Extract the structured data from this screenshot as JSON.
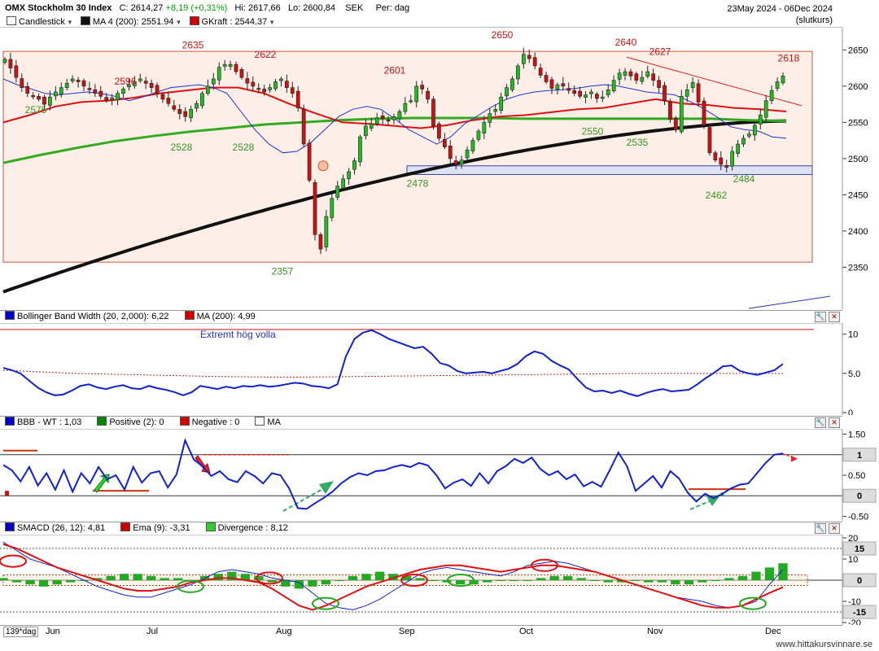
{
  "header": {
    "title": "OMX Stockholm 30 Index",
    "close": "C: 2614,27",
    "change": "+8,19 (+0,31%)",
    "high": "Hi: 2617,66",
    "low": "Lo: 2600,84",
    "currency": "SEK",
    "period": "Per: dag",
    "date_range": "23May 2024 - 06Dec 2024",
    "close_note": "(slutkurs)",
    "legend": [
      {
        "label": "Candlestick",
        "color": "#ffffff",
        "dropdown": true
      },
      {
        "label": "MA 4 (200): 2551.94",
        "color": "#000000",
        "dropdown": true
      },
      {
        "label": "GKraft : 2544.37",
        "color": "#d00000",
        "dropdown": true
      }
    ]
  },
  "panels": {
    "bbw": {
      "legend": [
        {
          "label": "Bollinger Band Width (20, 2,000): 6,22",
          "color": "#0000cc"
        },
        {
          "label": "MA (200): 4,99",
          "color": "#d00000"
        }
      ],
      "annotation": "Extremt hög volla"
    },
    "bbb": {
      "legend": [
        {
          "label": "BBB - WT : 1,03",
          "color": "#0000cc"
        },
        {
          "label": "Positive (2): 0",
          "color": "#008800"
        },
        {
          "label": "Negative : 0",
          "color": "#d00000"
        },
        {
          "label": "MA",
          "color": "#ffffff"
        }
      ],
      "tags": [
        "1",
        "0"
      ]
    },
    "smacd": {
      "legend": [
        {
          "label": "SMACD (26, 12): 4,81",
          "color": "#0000cc"
        },
        {
          "label": "Ema (9): -3,31",
          "color": "#d00000"
        },
        {
          "label": "Divergence : 8,12",
          "color": "#33cc33"
        }
      ],
      "tags": [
        "15",
        "0",
        "-15"
      ]
    }
  },
  "x_axis": {
    "period_label": "139*dag",
    "months": [
      "Jun",
      "Jul",
      "Aug",
      "Sep",
      "Oct",
      "Nov",
      "Dec"
    ]
  },
  "footer": "www.hittakursvinnare.se",
  "colors": {
    "up": "#22bb22",
    "down": "#cc1111",
    "ma200": "#111111",
    "ma_red": "#dd1111",
    "ma_green": "#33aa22",
    "bg_zone": "#fdeee8"
  },
  "chart_data": [
    {
      "type": "candlestick",
      "title": "OMX Stockholm 30 Index",
      "ylim": [
        2310,
        2665
      ],
      "y_ticks": [
        2350,
        2400,
        2450,
        2500,
        2550,
        2600,
        2650
      ],
      "close": [
        2637,
        2625,
        2612,
        2598,
        2590,
        2586,
        2582,
        2575,
        2585,
        2592,
        2598,
        2604,
        2610,
        2606,
        2600,
        2595,
        2590,
        2586,
        2580,
        2584,
        2590,
        2596,
        2602,
        2606,
        2610,
        2604,
        2598,
        2590,
        2582,
        2576,
        2568,
        2562,
        2558,
        2568,
        2576,
        2590,
        2600,
        2610,
        2626,
        2630,
        2630,
        2620,
        2612,
        2604,
        2600,
        2596,
        2592,
        2598,
        2606,
        2610,
        2598,
        2590,
        2570,
        2520,
        2470,
        2395,
        2375,
        2420,
        2445,
        2462,
        2472,
        2482,
        2497,
        2530,
        2545,
        2548,
        2556,
        2555,
        2552,
        2558,
        2565,
        2576,
        2580,
        2600,
        2596,
        2582,
        2545,
        2528,
        2516,
        2500,
        2492,
        2498,
        2512,
        2525,
        2538,
        2550,
        2562,
        2568,
        2585,
        2598,
        2610,
        2628,
        2644,
        2638,
        2628,
        2615,
        2606,
        2597,
        2602,
        2600,
        2594,
        2590,
        2586,
        2588,
        2592,
        2583,
        2585,
        2595,
        2608,
        2618,
        2620,
        2614,
        2608,
        2612,
        2620,
        2608,
        2598,
        2580,
        2554,
        2540,
        2586,
        2595,
        2605,
        2578,
        2546,
        2508,
        2498,
        2492,
        2488,
        2510,
        2520,
        2528,
        2534,
        2546,
        2560,
        2580,
        2594,
        2606,
        2614
      ],
      "labels": [
        "2635",
        "2622",
        "2596",
        "2575",
        "2528",
        "2528",
        "2357",
        "2601",
        "2478",
        "2650",
        "2550",
        "2640",
        "2627",
        "2535",
        "2618",
        "2484",
        "2462"
      ],
      "moving_averages": [
        {
          "name": "MA 4 (200)",
          "values_start": 2316,
          "values_end": 2552
        },
        {
          "name": "GKraft",
          "values_start": 2550,
          "values_end": 2565
        }
      ]
    },
    {
      "type": "line",
      "title": "Bollinger Band Width (20, 2,000)",
      "ylim": [
        0,
        11
      ],
      "y_ticks": [
        0,
        5.0,
        10
      ],
      "series": [
        {
          "name": "Bollinger Band Width (20, 2,000)",
          "values": [
            5.7,
            5.4,
            5.0,
            4.1,
            3.2,
            2.6,
            2.2,
            2.3,
            2.8,
            3.4,
            3.6,
            3.2,
            3.0,
            3.3,
            3.5,
            3.1,
            3.0,
            3.4,
            3.1,
            2.9,
            2.6,
            2.2,
            2.6,
            3.4,
            3.2,
            3.0,
            3.3,
            3.1,
            3.4,
            3.3,
            3.5,
            3.3,
            3.4,
            3.6,
            3.8,
            3.7,
            3.4,
            3.3,
            3.1,
            3.6,
            7.2,
            9.4,
            10.2,
            10.5,
            10.0,
            9.4,
            9.0,
            8.6,
            8.2,
            8.4,
            7.5,
            6.3,
            6.0,
            5.3,
            5.0,
            5.1,
            5.2,
            5.0,
            5.3,
            5.6,
            6.2,
            7.2,
            7.8,
            7.5,
            6.6,
            6.0,
            5.5,
            4.3,
            3.2,
            2.7,
            2.8,
            2.5,
            2.8,
            2.4,
            2.1,
            2.5,
            2.8,
            3.0,
            2.7,
            2.8,
            2.9,
            3.6,
            4.4,
            5.1,
            5.9,
            6.0,
            5.3,
            5.0,
            4.8,
            5.1,
            5.4,
            6.2
          ]
        },
        {
          "name": "MA (200)",
          "values": [
            5.4,
            5.0,
            4.8,
            4.6,
            4.5,
            4.6,
            4.7,
            4.8,
            4.9,
            5.0,
            5.0,
            4.99
          ]
        }
      ]
    },
    {
      "type": "line",
      "title": "BBB - WT",
      "ylim": [
        -0.55,
        1.55
      ],
      "y_ticks": [
        -0.5,
        0,
        0.5,
        1.0,
        1.5
      ],
      "series": [
        {
          "name": "BBB - WT",
          "values": [
            0.75,
            0.62,
            0.35,
            0.7,
            0.25,
            0.55,
            0.15,
            0.62,
            0.1,
            0.55,
            0.3,
            0.7,
            0.4,
            0.5,
            0.15,
            0.7,
            0.32,
            0.55,
            0.6,
            0.2,
            0.52,
            1.35,
            0.88,
            0.72,
            0.48,
            0.6,
            0.4,
            0.33,
            0.6,
            0.48,
            0.3,
            0.55,
            0.5,
            0.18,
            -0.3,
            -0.32,
            -0.18,
            -0.05,
            0.1,
            0.3,
            0.45,
            0.55,
            0.5,
            0.6,
            0.62,
            0.7,
            0.75,
            0.7,
            0.8,
            0.74,
            0.5,
            0.18,
            0.32,
            0.4,
            0.24,
            0.55,
            0.3,
            0.6,
            0.72,
            0.9,
            0.8,
            0.93,
            0.65,
            0.5,
            0.6,
            0.4,
            0.52,
            0.23,
            0.34,
            0.22,
            0.62,
            1.05,
            0.72,
            0.12,
            0.3,
            0.48,
            0.2,
            0.6,
            0.42,
            0.08,
            -0.14,
            0.05,
            -0.06,
            0.05,
            0.18,
            0.27,
            0.3,
            0.55,
            0.8,
            1.0,
            1.03
          ]
        }
      ]
    },
    {
      "type": "bar",
      "title": "SMACD (26, 12)",
      "ylim": [
        -20,
        20
      ],
      "y_ticks": [
        -20,
        -10,
        0,
        10,
        20
      ],
      "series": [
        {
          "name": "SMACD (26, 12)",
          "values": [
            18,
            14,
            10,
            8,
            6,
            3,
            0,
            -3,
            -5,
            -7,
            -8,
            -8,
            -6,
            -4,
            -2,
            1,
            4,
            5,
            4,
            3,
            1,
            0,
            -1,
            -6,
            -11,
            -13,
            -14,
            -12,
            -9,
            -5,
            -1,
            3,
            5,
            6,
            5,
            4,
            3,
            2,
            4,
            7,
            8,
            9,
            8,
            6,
            4,
            2,
            0,
            -2,
            -4,
            -6,
            -8,
            -9,
            -10,
            -12,
            -13,
            -12,
            -10,
            -2,
            5
          ]
        },
        {
          "name": "Ema (9)",
          "values": [
            17,
            15,
            12,
            9,
            6,
            4,
            2,
            0,
            -2,
            -4,
            -5,
            -5,
            -4,
            -3,
            -1,
            0,
            1,
            1,
            0,
            -1,
            -4,
            -8,
            -12,
            -14,
            -12,
            -9,
            -6,
            -3,
            -1,
            1,
            3,
            5,
            6,
            7,
            7,
            6,
            5,
            4,
            5,
            6,
            7,
            7,
            6,
            5,
            4,
            2,
            0,
            -2,
            -4,
            -6,
            -8,
            -10,
            -12,
            -13,
            -13,
            -12,
            -9,
            -6,
            -3.3
          ]
        },
        {
          "name": "Divergence",
          "values": [
            1,
            -1,
            -2,
            -3,
            -2,
            -1,
            0,
            1,
            2,
            3,
            3,
            2,
            1,
            1,
            0,
            2,
            3,
            4,
            3,
            2,
            -1,
            -3,
            -4,
            -3,
            -2,
            0,
            2,
            3,
            4,
            3,
            2,
            1,
            0,
            -1,
            -2,
            -2,
            -1,
            0,
            0,
            0,
            1,
            2,
            2,
            1,
            0,
            -1,
            -1,
            0,
            -1,
            -1,
            -2,
            -2,
            -1,
            0,
            1,
            2,
            4,
            6,
            8
          ]
        }
      ]
    }
  ]
}
